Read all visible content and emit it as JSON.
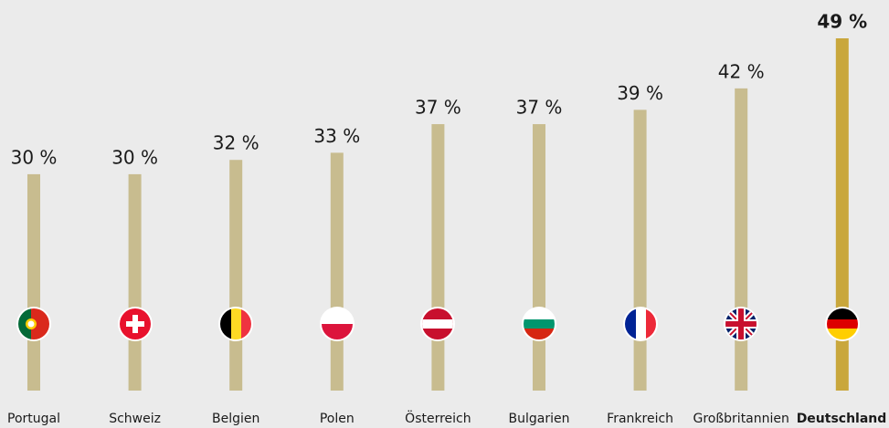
{
  "chart_data": {
    "type": "bar",
    "categories": [
      "Portugal",
      "Schweiz",
      "Belgien",
      "Polen",
      "Österreich",
      "Bulgarien",
      "Frankreich",
      "Großbritannien",
      "Deutschland"
    ],
    "values": [
      30,
      30,
      32,
      33,
      37,
      37,
      39,
      42,
      49
    ],
    "value_labels": [
      "30 %",
      "30 %",
      "32 %",
      "33 %",
      "37 %",
      "37 %",
      "39 %",
      "42 %",
      "49 %"
    ],
    "colors": [
      "#c8bc8f",
      "#c8bc8f",
      "#c8bc8f",
      "#c8bc8f",
      "#c8bc8f",
      "#c8bc8f",
      "#c8bc8f",
      "#c8bc8f",
      "#c9a73c"
    ],
    "highlight": "Deutschland"
  }
}
